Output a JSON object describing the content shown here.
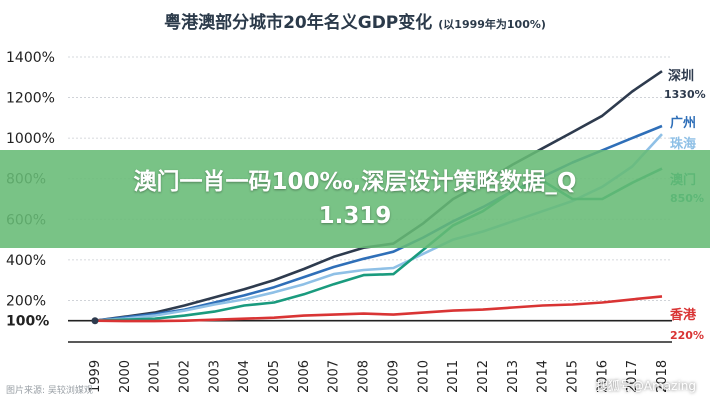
{
  "title": "粤港澳部分城市20年名义GDP变化",
  "subtitle": "(以1999年为100%)",
  "banner": "澳门一肖一码100‰,深层设计策略数据_Q1.319",
  "watermark_right": "搜狐号@Amazing",
  "watermark_left": "图片来源: 吴较浏媒观",
  "chart_data": {
    "type": "line",
    "x": [
      1999,
      2000,
      2001,
      2002,
      2003,
      2004,
      2005,
      2006,
      2007,
      2008,
      2009,
      2010,
      2011,
      2012,
      2013,
      2014,
      2015,
      2016,
      2017,
      2018
    ],
    "yticks": [
      "100%",
      "200%",
      "400%",
      "600%",
      "800%",
      "1000%",
      "1200%",
      "1400%"
    ],
    "ylim": [
      0,
      1400
    ],
    "series": [
      {
        "name": "深圳",
        "end_label": "1330%",
        "color": "#2e3b4e",
        "values": [
          100,
          120,
          140,
          175,
          215,
          255,
          300,
          355,
          415,
          460,
          480,
          580,
          700,
          780,
          870,
          950,
          1030,
          1110,
          1230,
          1330
        ]
      },
      {
        "name": "广州",
        "end_label": "",
        "color": "#2f6fb8",
        "values": [
          100,
          117,
          133,
          155,
          190,
          225,
          265,
          315,
          365,
          405,
          440,
          510,
          590,
          660,
          740,
          810,
          880,
          940,
          1000,
          1060
        ]
      },
      {
        "name": "珠海",
        "end_label": "",
        "color": "#8fc0e6",
        "values": [
          100,
          110,
          125,
          150,
          180,
          205,
          240,
          280,
          330,
          350,
          360,
          430,
          500,
          540,
          590,
          640,
          690,
          760,
          860,
          1020
        ]
      },
      {
        "name": "澳门",
        "end_label": "850%",
        "color": "#1a9b7e",
        "values": [
          100,
          105,
          110,
          125,
          145,
          175,
          190,
          230,
          280,
          325,
          330,
          450,
          570,
          640,
          740,
          790,
          700,
          700,
          780,
          850
        ]
      },
      {
        "name": "香港",
        "end_label": "220%",
        "color": "#d93434",
        "values": [
          100,
          98,
          98,
          100,
          105,
          110,
          115,
          125,
          130,
          135,
          130,
          140,
          150,
          155,
          165,
          175,
          180,
          190,
          205,
          220
        ]
      }
    ]
  }
}
